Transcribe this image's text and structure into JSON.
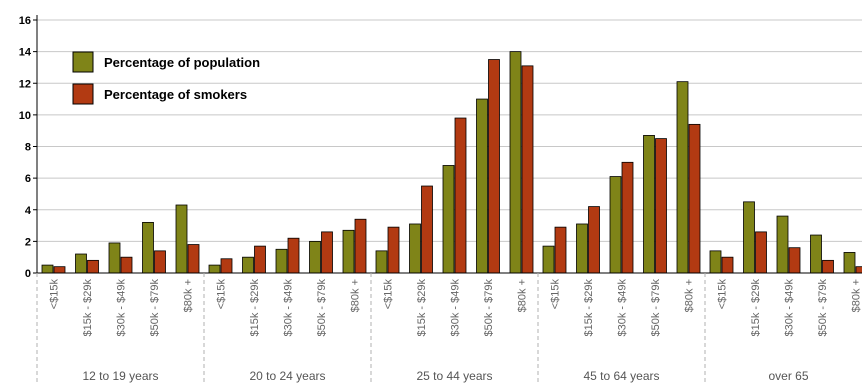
{
  "colors": {
    "population": "#7f8418",
    "smokers": "#b23a12",
    "gridline": "#c8c8c8",
    "axis": "#000000",
    "separator": "#b0b0b0"
  },
  "chart_data": {
    "type": "bar",
    "title": "",
    "xlabel": "",
    "ylabel": "",
    "ylim": [
      0,
      16
    ],
    "yticks": [
      0,
      2,
      4,
      6,
      8,
      10,
      12,
      14,
      16
    ],
    "grid": true,
    "legend_position": "top-left",
    "groups": [
      "12 to 19 years",
      "20 to 24 years",
      "25 to 44 years",
      "45 to 64 years",
      "over 65"
    ],
    "categories": [
      "<$15k",
      "$15k - $29k",
      "$30k - $49k",
      "$50k - $79k",
      "$80k +"
    ],
    "series": [
      {
        "name": "Percentage of population",
        "values": [
          [
            0.5,
            1.2,
            1.9,
            3.2,
            4.3
          ],
          [
            0.5,
            1.0,
            1.5,
            2.0,
            2.7
          ],
          [
            1.4,
            3.1,
            6.8,
            11.0,
            14.0
          ],
          [
            1.7,
            3.1,
            6.1,
            8.7,
            12.1
          ],
          [
            1.4,
            4.5,
            3.6,
            2.4,
            1.3
          ]
        ]
      },
      {
        "name": "Percentage of smokers",
        "values": [
          [
            0.4,
            0.8,
            1.0,
            1.4,
            1.8
          ],
          [
            0.9,
            1.7,
            2.2,
            2.6,
            3.4
          ],
          [
            2.9,
            5.5,
            9.8,
            13.5,
            13.1
          ],
          [
            2.9,
            4.2,
            7.0,
            8.5,
            9.4
          ],
          [
            1.0,
            2.6,
            1.6,
            0.8,
            0.4
          ]
        ]
      }
    ]
  }
}
